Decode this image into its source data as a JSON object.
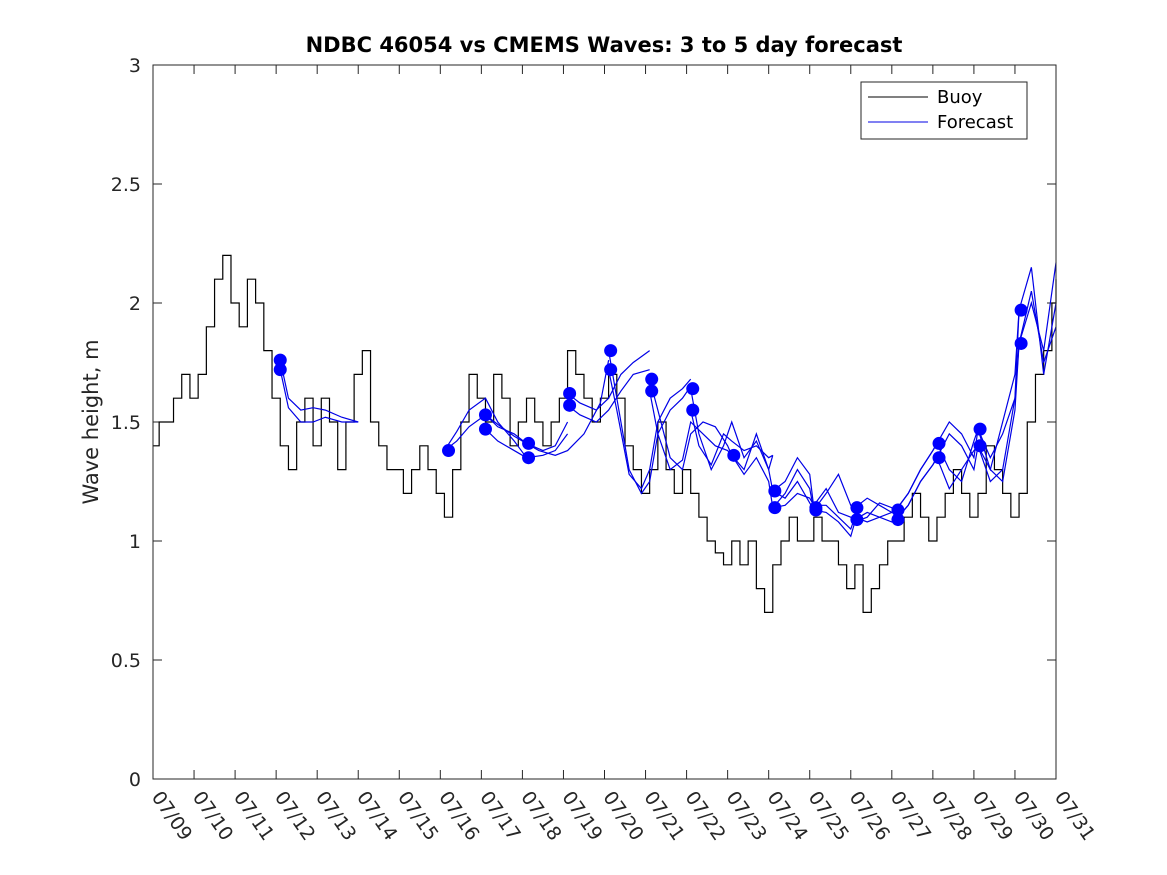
{
  "chart_data": {
    "type": "line",
    "title": "NDBC 46054 vs CMEMS Waves: 3 to 5 day forecast",
    "xlabel": "",
    "ylabel": "Wave height, m",
    "ylim": [
      0,
      3
    ],
    "xlim": [
      0,
      22
    ],
    "yticks": [
      0,
      0.5,
      1,
      1.5,
      2,
      2.5,
      3
    ],
    "yticklabels": [
      "0",
      "0.5",
      "1",
      "1.5",
      "2",
      "2.5",
      "3"
    ],
    "xticks": [
      0,
      1,
      2,
      3,
      4,
      5,
      6,
      7,
      8,
      9,
      10,
      11,
      12,
      13,
      14,
      15,
      16,
      17,
      18,
      19,
      20,
      21,
      22
    ],
    "xticklabels": [
      "07/09",
      "07/10",
      "07/11",
      "07/12",
      "07/13",
      "07/14",
      "07/15",
      "07/16",
      "07/17",
      "07/18",
      "07/19",
      "07/20",
      "07/21",
      "07/22",
      "07/23",
      "07/24",
      "07/25",
      "07/26",
      "07/27",
      "07/28",
      "07/29",
      "07/30",
      "07/31"
    ],
    "legend": {
      "position": "top-right",
      "entries": [
        "Buoy",
        "Forecast"
      ]
    },
    "colors": {
      "buoy": "#000000",
      "forecast": "#0000e6",
      "marker": "#0000ff"
    },
    "grid": false,
    "series": [
      {
        "name": "Buoy",
        "x": [
          0,
          0.15,
          0.3,
          0.5,
          0.7,
          0.9,
          1.1,
          1.3,
          1.5,
          1.7,
          1.9,
          2.1,
          2.3,
          2.5,
          2.7,
          2.9,
          3.1,
          3.3,
          3.5,
          3.7,
          3.9,
          4.1,
          4.3,
          4.5,
          4.7,
          4.9,
          5.1,
          5.3,
          5.5,
          5.7,
          5.9,
          6.1,
          6.3,
          6.5,
          6.7,
          6.9,
          7.1,
          7.3,
          7.5,
          7.7,
          7.9,
          8.1,
          8.3,
          8.5,
          8.7,
          8.9,
          9.1,
          9.3,
          9.5,
          9.7,
          9.9,
          10.1,
          10.3,
          10.5,
          10.7,
          10.9,
          11.1,
          11.3,
          11.5,
          11.7,
          11.9,
          12.1,
          12.3,
          12.5,
          12.7,
          12.9,
          13.1,
          13.3,
          13.5,
          13.7,
          13.9,
          14.1,
          14.3,
          14.5,
          14.7,
          14.9,
          15.1,
          15.3,
          15.5,
          15.7,
          15.9,
          16.1,
          16.3,
          16.5,
          16.7,
          16.9,
          17.1,
          17.3,
          17.5,
          17.7,
          17.9,
          18.1,
          18.3,
          18.5,
          18.7,
          18.9,
          19.1,
          19.3,
          19.5,
          19.7,
          19.9,
          20.1,
          20.3,
          20.5,
          20.7,
          20.9,
          21.1,
          21.3,
          21.5,
          21.7,
          21.9,
          22
        ],
        "y": [
          1.4,
          1.5,
          1.5,
          1.6,
          1.7,
          1.6,
          1.7,
          1.9,
          2.1,
          2.2,
          2.0,
          1.9,
          2.1,
          2.0,
          1.8,
          1.6,
          1.4,
          1.3,
          1.5,
          1.6,
          1.4,
          1.6,
          1.5,
          1.3,
          1.5,
          1.7,
          1.8,
          1.5,
          1.4,
          1.3,
          1.3,
          1.2,
          1.3,
          1.4,
          1.3,
          1.2,
          1.1,
          1.3,
          1.5,
          1.7,
          1.6,
          1.5,
          1.7,
          1.6,
          1.4,
          1.5,
          1.6,
          1.5,
          1.4,
          1.5,
          1.6,
          1.8,
          1.7,
          1.6,
          1.5,
          1.6,
          1.7,
          1.6,
          1.4,
          1.3,
          1.2,
          1.3,
          1.5,
          1.3,
          1.2,
          1.3,
          1.2,
          1.1,
          1.0,
          0.95,
          0.9,
          1.0,
          0.9,
          1.0,
          0.8,
          0.7,
          0.9,
          1.0,
          1.1,
          1.0,
          1.0,
          1.1,
          1.0,
          1.0,
          0.9,
          0.8,
          0.9,
          0.7,
          0.8,
          0.9,
          1.0,
          1.0,
          1.1,
          1.2,
          1.1,
          1.0,
          1.1,
          1.2,
          1.3,
          1.2,
          1.1,
          1.2,
          1.4,
          1.3,
          1.2,
          1.1,
          1.2,
          1.5,
          1.7,
          1.8,
          2.0,
          2.1
        ]
      },
      {
        "name": "Forecast",
        "lines": [
          {
            "x": [
              3.1,
              3.3,
              3.6,
              3.9,
              4.2,
              4.6,
              5.0
            ],
            "y": [
              1.76,
              1.6,
              1.55,
              1.56,
              1.55,
              1.52,
              1.5
            ]
          },
          {
            "x": [
              3.1,
              3.3,
              3.6,
              3.9,
              4.2,
              4.6,
              5.0
            ],
            "y": [
              1.72,
              1.56,
              1.5,
              1.5,
              1.52,
              1.5,
              1.5
            ]
          },
          {
            "x": [
              7.1,
              7.4,
              7.7,
              8.1,
              8.4,
              8.8,
              9.1
            ],
            "y": [
              1.38,
              1.42,
              1.48,
              1.53,
              1.49,
              1.44,
              1.41
            ]
          },
          {
            "x": [
              7.1,
              7.4,
              7.7,
              8.1,
              8.4,
              8.8,
              9.1
            ],
            "y": [
              1.38,
              1.46,
              1.55,
              1.6,
              1.5,
              1.42,
              1.35
            ]
          },
          {
            "x": [
              8.1,
              8.4,
              8.8,
              9.1,
              9.5,
              9.8,
              10.1
            ],
            "y": [
              1.53,
              1.48,
              1.45,
              1.41,
              1.38,
              1.4,
              1.5
            ]
          },
          {
            "x": [
              8.1,
              8.4,
              8.8,
              9.1,
              9.5,
              9.8,
              10.1
            ],
            "y": [
              1.47,
              1.42,
              1.38,
              1.35,
              1.36,
              1.38,
              1.45
            ]
          },
          {
            "x": [
              9.1,
              9.4,
              9.8,
              10.1,
              10.5,
              10.9,
              11.1
            ],
            "y": [
              1.41,
              1.38,
              1.36,
              1.38,
              1.45,
              1.58,
              1.76
            ]
          },
          {
            "x": [
              10.1,
              10.4,
              10.8,
              11.1,
              11.4,
              11.7,
              12.1
            ],
            "y": [
              1.62,
              1.58,
              1.55,
              1.6,
              1.7,
              1.75,
              1.8
            ]
          },
          {
            "x": [
              10.1,
              10.4,
              10.8,
              11.1,
              11.4,
              11.7,
              12.1
            ],
            "y": [
              1.57,
              1.53,
              1.5,
              1.55,
              1.63,
              1.7,
              1.72
            ]
          },
          {
            "x": [
              11.1,
              11.3,
              11.6,
              11.9,
              12.1,
              12.3,
              12.6,
              12.9,
              13.1
            ],
            "y": [
              1.8,
              1.6,
              1.3,
              1.2,
              1.25,
              1.45,
              1.55,
              1.6,
              1.65
            ]
          },
          {
            "x": [
              11.1,
              11.3,
              11.6,
              11.9,
              12.1,
              12.3,
              12.6,
              12.9,
              13.1
            ],
            "y": [
              1.72,
              1.55,
              1.28,
              1.22,
              1.3,
              1.5,
              1.6,
              1.64,
              1.68
            ]
          },
          {
            "x": [
              12.1,
              12.3,
              12.6,
              12.9,
              13.1,
              13.4,
              13.7,
              14.0,
              14.1
            ],
            "y": [
              1.68,
              1.55,
              1.35,
              1.3,
              1.45,
              1.5,
              1.48,
              1.4,
              1.36
            ]
          },
          {
            "x": [
              12.1,
              12.3,
              12.6,
              12.9,
              13.1,
              13.4,
              13.7,
              14.0,
              14.1
            ],
            "y": [
              1.63,
              1.45,
              1.3,
              1.34,
              1.5,
              1.45,
              1.4,
              1.38,
              1.36
            ]
          },
          {
            "x": [
              13.1,
              13.3,
              13.6,
              13.9,
              14.1,
              14.4,
              14.7,
              15.0,
              15.1
            ],
            "y": [
              1.64,
              1.45,
              1.3,
              1.4,
              1.5,
              1.35,
              1.42,
              1.3,
              1.36
            ]
          },
          {
            "x": [
              13.1,
              13.3,
              13.6,
              13.9,
              14.1,
              14.4,
              14.7,
              15.0,
              15.1
            ],
            "y": [
              1.55,
              1.4,
              1.32,
              1.45,
              1.42,
              1.38,
              1.4,
              1.35,
              1.36
            ]
          },
          {
            "x": [
              14.1,
              14.4,
              14.7,
              15.0,
              15.1,
              15.4,
              15.7,
              16.0,
              16.1
            ],
            "y": [
              1.36,
              1.3,
              1.45,
              1.3,
              1.21,
              1.25,
              1.35,
              1.28,
              1.14
            ]
          },
          {
            "x": [
              14.1,
              14.4,
              14.7,
              15.0,
              15.1,
              15.4,
              15.7,
              16.0,
              16.1
            ],
            "y": [
              1.36,
              1.28,
              1.35,
              1.25,
              1.14,
              1.2,
              1.3,
              1.22,
              1.13
            ]
          },
          {
            "x": [
              15.1,
              15.4,
              15.7,
              16.0,
              16.1,
              16.4,
              16.7,
              17.0,
              17.1
            ],
            "y": [
              1.21,
              1.18,
              1.25,
              1.16,
              1.13,
              1.2,
              1.28,
              1.15,
              1.14
            ]
          },
          {
            "x": [
              15.1,
              15.4,
              15.7,
              16.0,
              16.1,
              16.4,
              16.7,
              17.0,
              17.1
            ],
            "y": [
              1.14,
              1.15,
              1.2,
              1.18,
              1.15,
              1.22,
              1.12,
              1.1,
              1.09
            ]
          },
          {
            "x": [
              16.1,
              16.4,
              16.7,
              17.0,
              17.1,
              17.4,
              17.7,
              18.0,
              18.1
            ],
            "y": [
              1.15,
              1.15,
              1.1,
              1.05,
              1.1,
              1.08,
              1.1,
              1.12,
              1.13
            ]
          },
          {
            "x": [
              16.1,
              16.4,
              16.7,
              17.0,
              17.1,
              17.4,
              17.7,
              18.0,
              18.1
            ],
            "y": [
              1.13,
              1.12,
              1.08,
              1.02,
              1.08,
              1.1,
              1.16,
              1.14,
              1.09
            ]
          },
          {
            "x": [
              17.1,
              17.4,
              17.7,
              18.0,
              18.1,
              18.4,
              18.7,
              19.0,
              19.1
            ],
            "y": [
              1.14,
              1.18,
              1.15,
              1.12,
              1.13,
              1.2,
              1.3,
              1.38,
              1.41
            ]
          },
          {
            "x": [
              17.1,
              17.4,
              17.7,
              18.0,
              18.1,
              18.4,
              18.7,
              19.0,
              19.1
            ],
            "y": [
              1.09,
              1.12,
              1.1,
              1.08,
              1.09,
              1.15,
              1.25,
              1.32,
              1.35
            ]
          },
          {
            "x": [
              18.1,
              18.4,
              18.7,
              19.0,
              19.1,
              19.4,
              19.7,
              20.0,
              20.1
            ],
            "y": [
              1.13,
              1.2,
              1.3,
              1.38,
              1.41,
              1.3,
              1.25,
              1.42,
              1.47
            ]
          },
          {
            "x": [
              18.1,
              18.4,
              18.7,
              19.0,
              19.1,
              19.4,
              19.7,
              20.0,
              20.1
            ],
            "y": [
              1.09,
              1.15,
              1.25,
              1.32,
              1.35,
              1.22,
              1.3,
              1.38,
              1.4
            ]
          },
          {
            "x": [
              19.1,
              19.4,
              19.7,
              20.0,
              20.1,
              20.4,
              20.7,
              21.0,
              21.1
            ],
            "y": [
              1.41,
              1.5,
              1.45,
              1.35,
              1.47,
              1.3,
              1.25,
              1.55,
              1.83
            ]
          },
          {
            "x": [
              19.1,
              19.4,
              19.7,
              20.0,
              20.1,
              20.4,
              20.7,
              21.0,
              21.1
            ],
            "y": [
              1.35,
              1.45,
              1.4,
              1.3,
              1.4,
              1.25,
              1.3,
              1.6,
              1.97
            ]
          },
          {
            "x": [
              20.1,
              20.4,
              20.7,
              21.0,
              21.1,
              21.4,
              21.7,
              22.0
            ],
            "y": [
              1.47,
              1.35,
              1.45,
              1.6,
              1.83,
              2.0,
              1.8,
              2.17
            ]
          },
          {
            "x": [
              20.1,
              20.4,
              20.7,
              21.0,
              21.1,
              21.4,
              21.7,
              22.0
            ],
            "y": [
              1.4,
              1.3,
              1.5,
              1.7,
              1.97,
              2.15,
              1.7,
              2.0
            ]
          },
          {
            "x": [
              21.1,
              21.4,
              21.7,
              22.0
            ],
            "y": [
              1.83,
              2.05,
              1.75,
              1.9
            ]
          }
        ],
        "markers": [
          {
            "x": 3.1,
            "y": 1.76
          },
          {
            "x": 3.1,
            "y": 1.72
          },
          {
            "x": 7.2,
            "y": 1.38
          },
          {
            "x": 8.1,
            "y": 1.53
          },
          {
            "x": 8.1,
            "y": 1.47
          },
          {
            "x": 9.15,
            "y": 1.41
          },
          {
            "x": 9.15,
            "y": 1.35
          },
          {
            "x": 10.15,
            "y": 1.62
          },
          {
            "x": 10.15,
            "y": 1.57
          },
          {
            "x": 11.15,
            "y": 1.8
          },
          {
            "x": 11.15,
            "y": 1.72
          },
          {
            "x": 12.15,
            "y": 1.68
          },
          {
            "x": 12.15,
            "y": 1.63
          },
          {
            "x": 13.15,
            "y": 1.64
          },
          {
            "x": 13.15,
            "y": 1.55
          },
          {
            "x": 14.15,
            "y": 1.36
          },
          {
            "x": 15.15,
            "y": 1.21
          },
          {
            "x": 15.15,
            "y": 1.14
          },
          {
            "x": 16.15,
            "y": 1.14
          },
          {
            "x": 16.15,
            "y": 1.13
          },
          {
            "x": 17.15,
            "y": 1.14
          },
          {
            "x": 17.15,
            "y": 1.09
          },
          {
            "x": 18.15,
            "y": 1.13
          },
          {
            "x": 18.15,
            "y": 1.09
          },
          {
            "x": 19.15,
            "y": 1.41
          },
          {
            "x": 19.15,
            "y": 1.35
          },
          {
            "x": 20.15,
            "y": 1.47
          },
          {
            "x": 20.15,
            "y": 1.4
          },
          {
            "x": 21.15,
            "y": 1.97
          },
          {
            "x": 21.15,
            "y": 1.83
          }
        ]
      }
    ]
  }
}
